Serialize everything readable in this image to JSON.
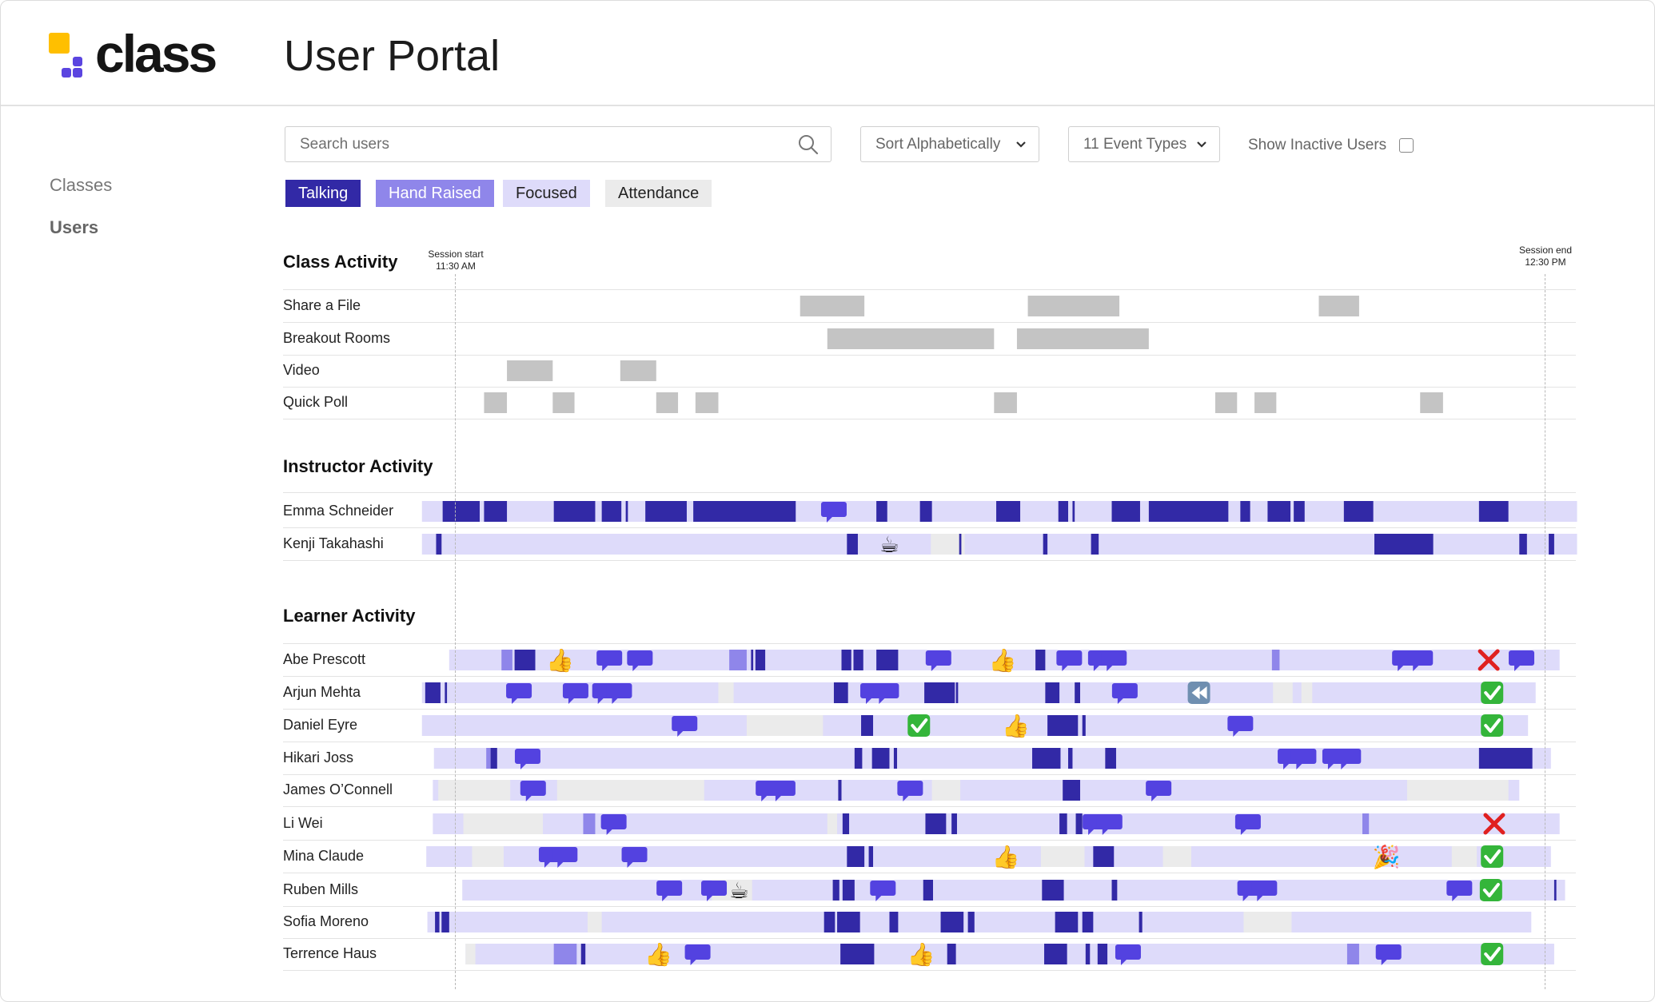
{
  "app": {
    "logo_text": "class",
    "title": "User Portal"
  },
  "colors": {
    "talking": "#3229a6",
    "hand_raised": "#8f86ea",
    "focused": "#dedbfa",
    "attendance": "#ebebeb",
    "event_block": "#c4c4c4",
    "chat_bubble": "#5342e0"
  },
  "sidebar": {
    "items": [
      {
        "label": "Classes",
        "active": false
      },
      {
        "label": "Users",
        "active": true
      }
    ]
  },
  "toolbar": {
    "search_placeholder": "Search users",
    "sort_label": "Sort Alphabetically",
    "event_types_label": "11 Event Types",
    "show_inactive_label": "Show Inactive Users",
    "show_inactive_checked": false
  },
  "legend": [
    "Talking",
    "Hand Raised",
    "Focused",
    "Attendance"
  ],
  "timeline": {
    "start_time": "11:30 AM",
    "end_time": "12:30 PM",
    "session_start_label": "Session start",
    "session_end_label": "Session end"
  },
  "sections": {
    "class_activity": "Class Activity",
    "instructor_activity": "Instructor Activity",
    "learner_activity": "Learner Activity"
  },
  "class_rows": [
    {
      "label": "Share a File",
      "blocks": [
        [
          0.316,
          0.375
        ],
        [
          0.525,
          0.609
        ],
        [
          0.792,
          0.829
        ]
      ]
    },
    {
      "label": "Breakout Rooms",
      "blocks": [
        [
          0.341,
          0.494
        ],
        [
          0.515,
          0.636
        ]
      ]
    },
    {
      "label": "Video",
      "blocks": [
        [
          0.047,
          0.089
        ],
        [
          0.151,
          0.184
        ]
      ]
    },
    {
      "label": "Quick Poll",
      "blocks": [
        [
          0.026,
          0.047
        ],
        [
          0.089,
          0.109
        ],
        [
          0.184,
          0.204
        ],
        [
          0.22,
          0.241
        ],
        [
          0.494,
          0.515
        ],
        [
          0.697,
          0.717
        ],
        [
          0.733,
          0.753
        ],
        [
          0.885,
          0.906
        ]
      ]
    }
  ],
  "instructor_rows": [
    {
      "label": "Emma Schneider",
      "bg": [
        -0.031,
        1.029
      ],
      "attend": [],
      "talk": [
        [
          -0.012,
          0.022
        ],
        [
          0.026,
          0.047
        ],
        [
          0.09,
          0.128
        ],
        [
          0.134,
          0.152
        ],
        [
          0.156,
          0.158
        ],
        [
          0.174,
          0.212
        ],
        [
          0.218,
          0.312
        ],
        [
          0.386,
          0.396
        ],
        [
          0.426,
          0.437
        ],
        [
          0.496,
          0.518
        ],
        [
          0.553,
          0.562
        ],
        [
          0.566,
          0.568
        ],
        [
          0.602,
          0.628
        ],
        [
          0.636,
          0.709
        ],
        [
          0.72,
          0.729
        ],
        [
          0.745,
          0.766
        ],
        [
          0.769,
          0.779
        ],
        [
          0.815,
          0.842
        ],
        [
          0.939,
          0.966
        ]
      ],
      "hand": [],
      "icons": [
        {
          "t": 0.347,
          "type": "chat"
        }
      ]
    },
    {
      "label": "Kenji Takahashi",
      "bg": [
        -0.031,
        1.029
      ],
      "attend": [
        [
          0.436,
          0.467
        ]
      ],
      "talk": [
        [
          -0.018,
          -0.013
        ],
        [
          0.359,
          0.369
        ],
        [
          0.462,
          0.464
        ],
        [
          0.539,
          0.543
        ],
        [
          0.583,
          0.59
        ],
        [
          0.843,
          0.897
        ],
        [
          0.976,
          0.983
        ],
        [
          1.003,
          1.008
        ]
      ],
      "hand": [],
      "icons": [
        {
          "t": 0.398,
          "type": "coffee"
        }
      ]
    }
  ],
  "learner_rows": [
    {
      "label": "Abe Prescott",
      "bg": [
        -0.006,
        1.013
      ],
      "attend": [],
      "talk": [
        [
          0.054,
          0.073
        ],
        [
          0.271,
          0.273
        ],
        [
          0.275,
          0.284
        ],
        [
          0.354,
          0.363
        ],
        [
          0.365,
          0.374
        ],
        [
          0.386,
          0.406
        ],
        [
          0.532,
          0.541
        ]
      ],
      "hand": [
        [
          0.042,
          0.052
        ],
        [
          0.251,
          0.267
        ],
        [
          0.749,
          0.756
        ]
      ],
      "icons": [
        {
          "t": 0.096,
          "type": "thumb"
        },
        {
          "t": 0.141,
          "type": "chat"
        },
        {
          "t": 0.169,
          "type": "chat"
        },
        {
          "t": 0.443,
          "type": "chat"
        },
        {
          "t": 0.502,
          "type": "thumb"
        },
        {
          "t": 0.563,
          "type": "chat"
        },
        {
          "t": 0.592,
          "type": "chat"
        },
        {
          "t": 0.604,
          "type": "chat"
        },
        {
          "t": 0.871,
          "type": "chat"
        },
        {
          "t": 0.885,
          "type": "chat"
        },
        {
          "t": 0.948,
          "type": "x"
        },
        {
          "t": 0.978,
          "type": "chat"
        }
      ]
    },
    {
      "label": "Arjun Mehta",
      "bg": [
        -0.031,
        0.991
      ],
      "attend": [
        [
          0.241,
          0.255
        ],
        [
          0.75,
          0.768
        ],
        [
          0.776,
          0.786
        ]
      ],
      "talk": [
        [
          -0.028,
          -0.014
        ],
        [
          -0.01,
          -0.008
        ],
        [
          0.347,
          0.36
        ],
        [
          0.43,
          0.458
        ],
        [
          0.459,
          0.461
        ],
        [
          0.541,
          0.554
        ],
        [
          0.568,
          0.573
        ]
      ],
      "hand": [],
      "icons": [
        {
          "t": 0.058,
          "type": "chat"
        },
        {
          "t": 0.11,
          "type": "chat"
        },
        {
          "t": 0.137,
          "type": "chat"
        },
        {
          "t": 0.15,
          "type": "chat"
        },
        {
          "t": 0.383,
          "type": "chat"
        },
        {
          "t": 0.395,
          "type": "chat"
        },
        {
          "t": 0.614,
          "type": "chat"
        },
        {
          "t": 0.682,
          "type": "rewind"
        },
        {
          "t": 0.951,
          "type": "check"
        }
      ]
    },
    {
      "label": "Daniel Eyre",
      "bg": [
        -0.031,
        0.984
      ],
      "attend": [
        [
          0.267,
          0.337
        ]
      ],
      "talk": [
        [
          0.372,
          0.383
        ],
        [
          0.543,
          0.571
        ],
        [
          0.575,
          0.578
        ]
      ],
      "hand": [],
      "icons": [
        {
          "t": 0.21,
          "type": "chat"
        },
        {
          "t": 0.425,
          "type": "check"
        },
        {
          "t": 0.514,
          "type": "thumb"
        },
        {
          "t": 0.72,
          "type": "chat"
        },
        {
          "t": 0.951,
          "type": "check"
        }
      ]
    },
    {
      "label": "Hikari Joss",
      "bg": [
        -0.02,
        1.005
      ],
      "attend": [],
      "talk": [
        [
          0.032,
          0.038
        ],
        [
          0.366,
          0.373
        ],
        [
          0.382,
          0.398
        ],
        [
          0.402,
          0.405
        ],
        [
          0.529,
          0.555
        ],
        [
          0.562,
          0.566
        ],
        [
          0.596,
          0.606
        ],
        [
          0.939,
          0.988
        ]
      ],
      "hand": [
        [
          0.028,
          0.032
        ]
      ],
      "icons": [
        {
          "t": 0.066,
          "type": "chat"
        },
        {
          "t": 0.766,
          "type": "chat"
        },
        {
          "t": 0.778,
          "type": "chat"
        },
        {
          "t": 0.807,
          "type": "chat"
        },
        {
          "t": 0.819,
          "type": "chat"
        }
      ]
    },
    {
      "label": "James O’Connell",
      "bg": [
        -0.021,
        0.976
      ],
      "attend": [
        [
          -0.016,
          0.05
        ],
        [
          0.093,
          0.228
        ],
        [
          0.437,
          0.463
        ],
        [
          0.873,
          0.966
        ]
      ],
      "talk": [
        [
          0.351,
          0.354
        ],
        [
          0.557,
          0.573
        ]
      ],
      "hand": [],
      "icons": [
        {
          "t": 0.071,
          "type": "chat"
        },
        {
          "t": 0.287,
          "type": "chat"
        },
        {
          "t": 0.3,
          "type": "chat"
        },
        {
          "t": 0.417,
          "type": "chat"
        },
        {
          "t": 0.645,
          "type": "chat"
        }
      ]
    },
    {
      "label": "Li Wei",
      "bg": [
        -0.021,
        1.013
      ],
      "attend": [
        [
          0.007,
          0.08
        ],
        [
          0.341,
          0.35
        ]
      ],
      "talk": [
        [
          0.355,
          0.361
        ],
        [
          0.431,
          0.45
        ],
        [
          0.455,
          0.46
        ],
        [
          0.554,
          0.561
        ],
        [
          0.569,
          0.575
        ]
      ],
      "hand": [
        [
          0.117,
          0.128
        ],
        [
          0.832,
          0.838
        ]
      ],
      "icons": [
        {
          "t": 0.145,
          "type": "chat"
        },
        {
          "t": 0.587,
          "type": "chat"
        },
        {
          "t": 0.6,
          "type": "chat"
        },
        {
          "t": 0.727,
          "type": "chat"
        },
        {
          "t": 0.953,
          "type": "x"
        }
      ]
    },
    {
      "label": "Mina Claude",
      "bg": [
        -0.027,
        1.005
      ],
      "attend": [
        [
          0.015,
          0.044
        ],
        [
          0.537,
          0.577
        ],
        [
          0.649,
          0.675
        ],
        [
          0.914,
          0.937
        ]
      ],
      "talk": [
        [
          0.359,
          0.375
        ],
        [
          0.379,
          0.383
        ],
        [
          0.585,
          0.604
        ]
      ],
      "hand": [],
      "icons": [
        {
          "t": 0.088,
          "type": "chat"
        },
        {
          "t": 0.1,
          "type": "chat"
        },
        {
          "t": 0.164,
          "type": "chat"
        },
        {
          "t": 0.505,
          "type": "thumb"
        },
        {
          "t": 0.854,
          "type": "party"
        },
        {
          "t": 0.951,
          "type": "check"
        }
      ]
    },
    {
      "label": "Ruben Mills",
      "bg": [
        0.006,
        1.018
      ],
      "attend": [
        [
          0.235,
          0.272
        ]
      ],
      "talk": [
        [
          0.346,
          0.352
        ],
        [
          0.355,
          0.366
        ],
        [
          0.429,
          0.438
        ],
        [
          0.538,
          0.558
        ],
        [
          0.602,
          0.607
        ],
        [
          1.008,
          1.01
        ]
      ],
      "hand": [],
      "icons": [
        {
          "t": 0.196,
          "type": "chat"
        },
        {
          "t": 0.237,
          "type": "chat"
        },
        {
          "t": 0.26,
          "type": "coffee"
        },
        {
          "t": 0.392,
          "type": "chat"
        },
        {
          "t": 0.729,
          "type": "chat"
        },
        {
          "t": 0.742,
          "type": "chat"
        },
        {
          "t": 0.921,
          "type": "chat"
        },
        {
          "t": 0.95,
          "type": "check"
        }
      ]
    },
    {
      "label": "Sofia Moreno",
      "bg": [
        -0.026,
        0.987
      ],
      "attend": [
        [
          0.121,
          0.134
        ],
        [
          0.723,
          0.767
        ]
      ],
      "talk": [
        [
          -0.019,
          -0.015
        ],
        [
          -0.013,
          -0.006
        ],
        [
          0.338,
          0.348
        ],
        [
          0.35,
          0.371
        ],
        [
          0.398,
          0.406
        ],
        [
          0.445,
          0.466
        ],
        [
          0.47,
          0.476
        ],
        [
          0.55,
          0.571
        ],
        [
          0.575,
          0.585
        ],
        [
          0.627,
          0.63
        ]
      ],
      "hand": [],
      "icons": []
    },
    {
      "label": "Terrence Haus",
      "bg": [
        0.009,
        1.008
      ],
      "attend": [
        [
          0.009,
          0.018
        ]
      ],
      "talk": [
        [
          0.115,
          0.119
        ],
        [
          0.353,
          0.384
        ],
        [
          0.451,
          0.459
        ],
        [
          0.54,
          0.561
        ],
        [
          0.578,
          0.582
        ],
        [
          0.589,
          0.598
        ]
      ],
      "hand": [
        [
          0.09,
          0.111
        ],
        [
          0.818,
          0.829
        ]
      ],
      "icons": [
        {
          "t": 0.186,
          "type": "thumb"
        },
        {
          "t": 0.222,
          "type": "chat"
        },
        {
          "t": 0.427,
          "type": "thumb"
        },
        {
          "t": 0.617,
          "type": "chat"
        },
        {
          "t": 0.856,
          "type": "chat"
        },
        {
          "t": 0.951,
          "type": "check"
        }
      ]
    }
  ]
}
